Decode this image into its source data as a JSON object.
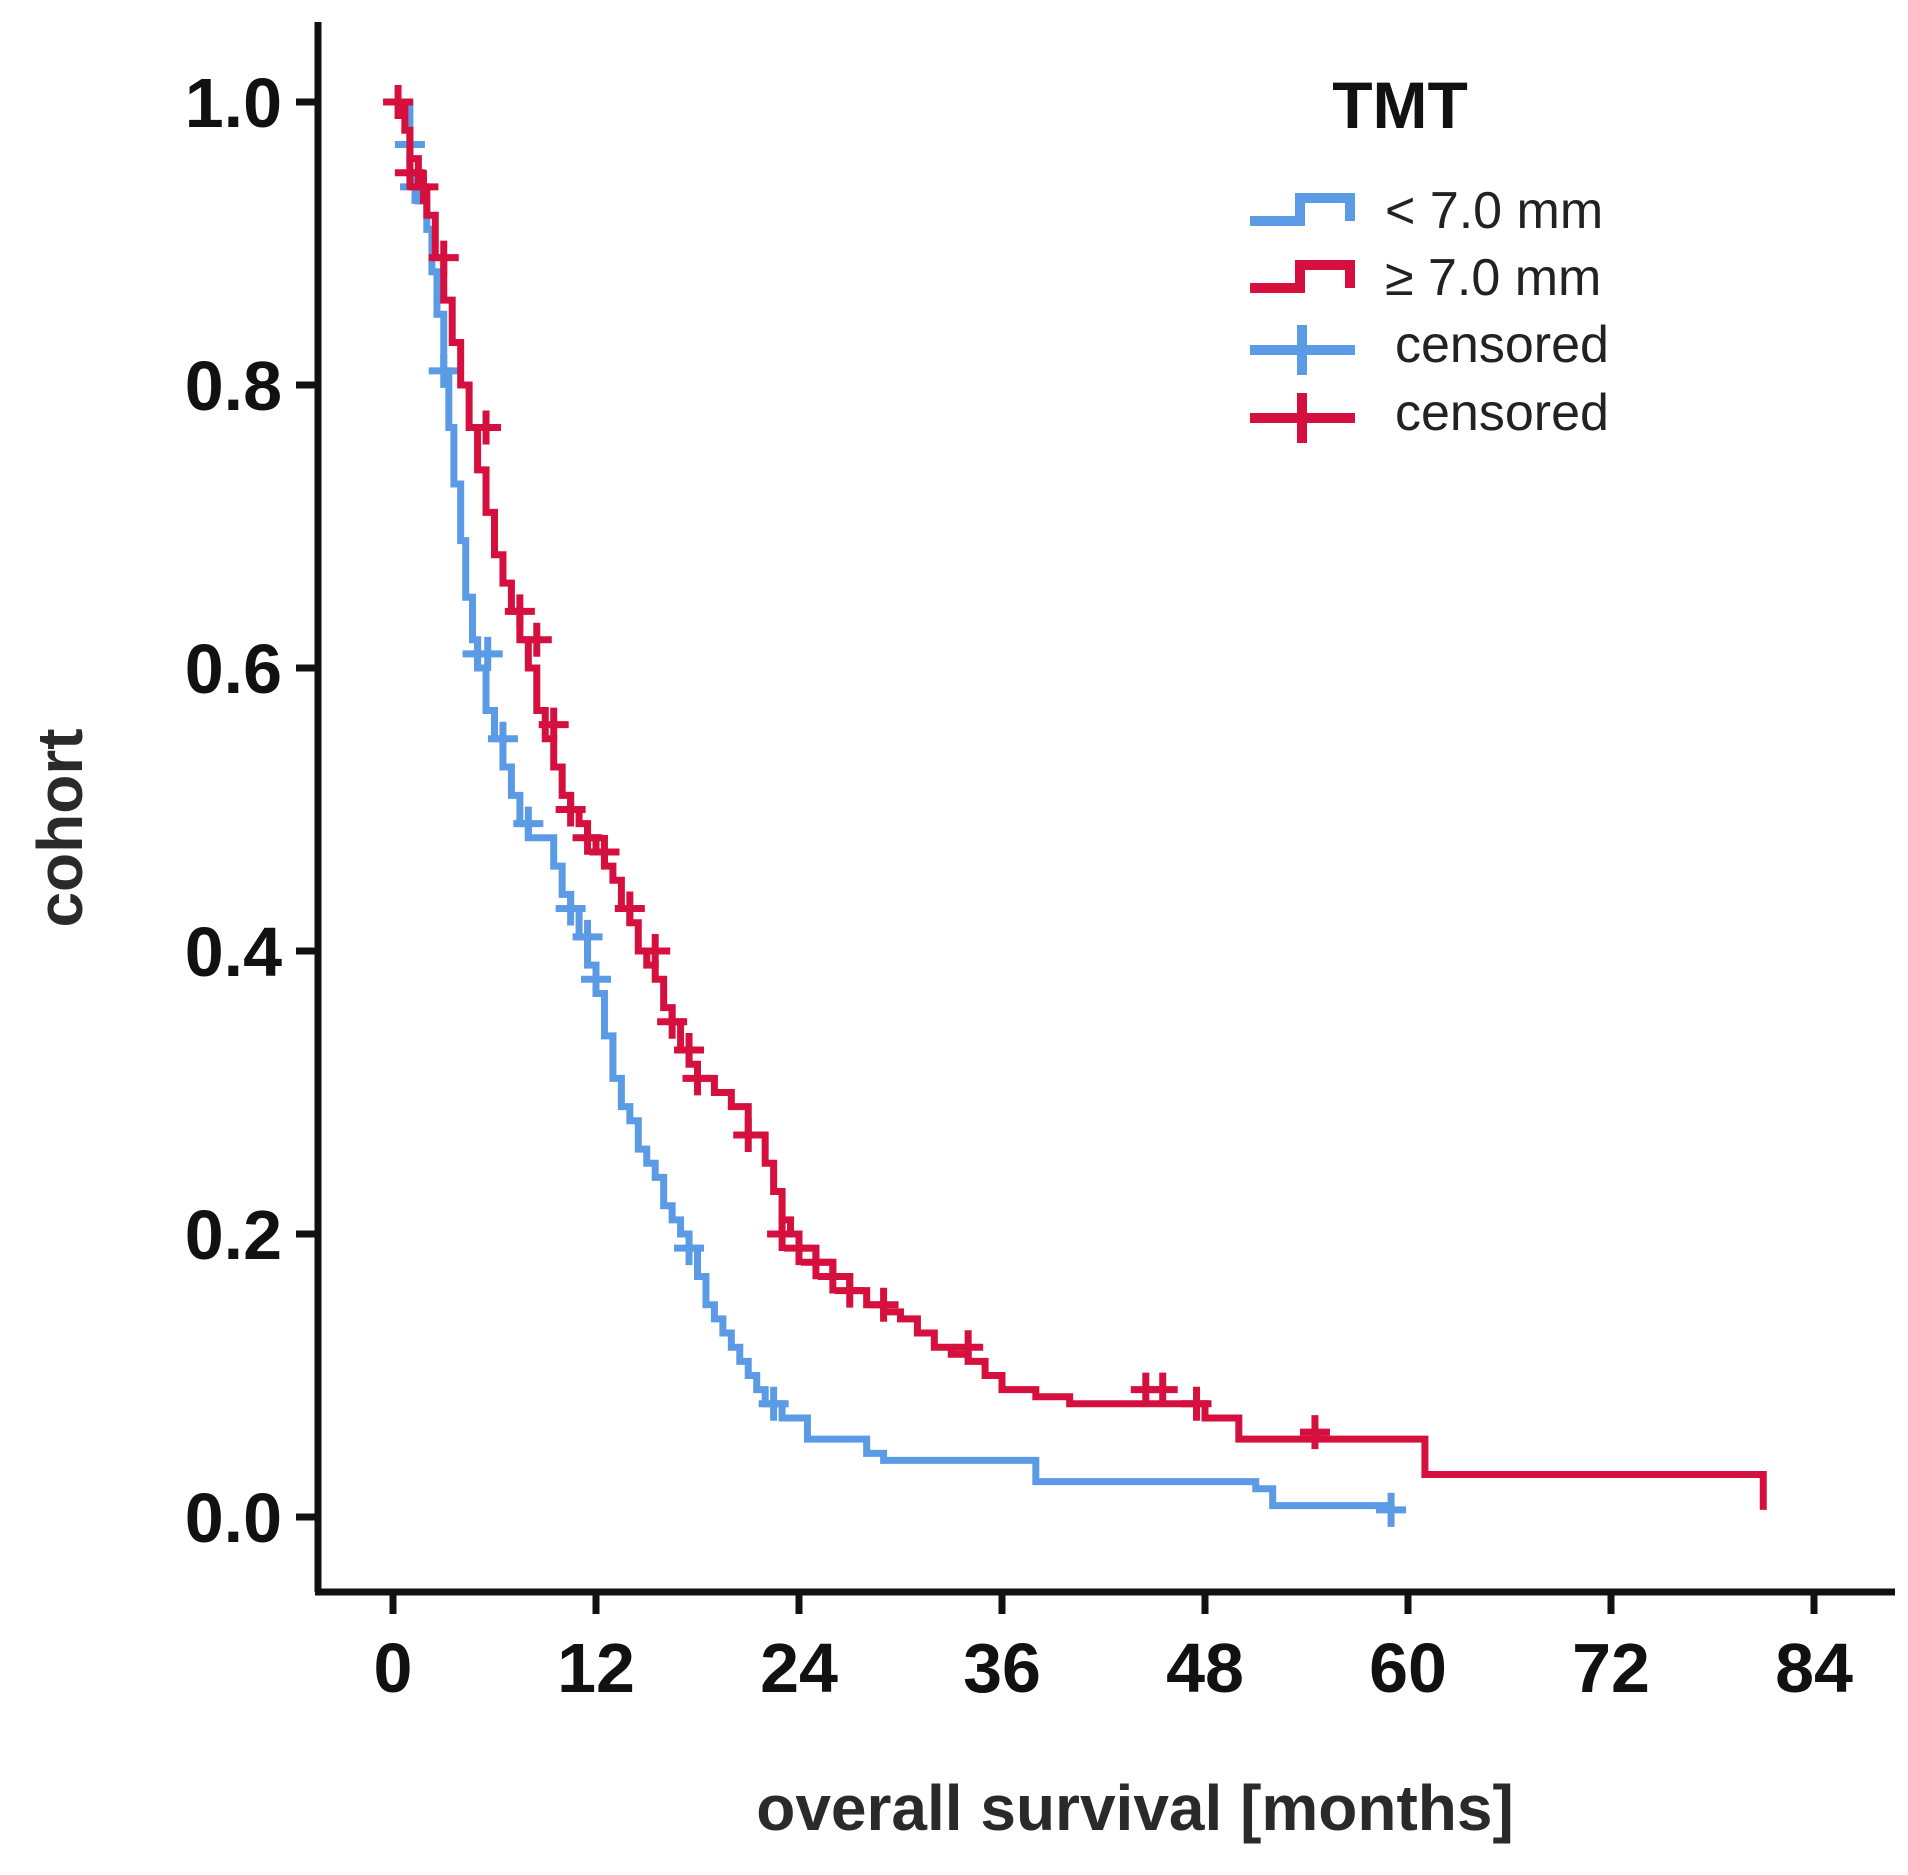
{
  "chart_data": {
    "type": "line",
    "subtype": "kaplan-meier",
    "xlabel": "overall survival [months]",
    "ylabel": "cohort",
    "xlim": [
      0,
      84
    ],
    "ylim": [
      0,
      1.0
    ],
    "xticks": [
      "0",
      "12",
      "24",
      "36",
      "48",
      "60",
      "72",
      "84"
    ],
    "xtick_values": [
      0,
      12,
      24,
      36,
      48,
      60,
      72,
      84
    ],
    "yticks": [
      "0.0",
      "0.2",
      "0.4",
      "0.6",
      "0.8",
      "1.0"
    ],
    "ytick_values": [
      0,
      0.2,
      0.4,
      0.6,
      0.8,
      1.0
    ],
    "legend": {
      "title": "TMT",
      "position": "top-right",
      "entries": [
        "< 7.0 mm",
        "≥ 7.0 mm",
        "censored",
        "censored"
      ]
    },
    "colors": {
      "blue": "#5b9be6",
      "red": "#d5103f",
      "axis": "#111111"
    },
    "series": [
      {
        "name": "< 7.0 mm",
        "color": "#5b9be6",
        "x": [
          0,
          1.0,
          1.5,
          2.0,
          2.3,
          2.6,
          3.0,
          3.3,
          3.6,
          4.0,
          4.3,
          4.7,
          5.0,
          5.5,
          6.0,
          6.5,
          7.0,
          7.5,
          8.0,
          9.5,
          10.0,
          10.5,
          11.0,
          11.5,
          12.0,
          12.5,
          13.0,
          13.5,
          14.0,
          14.5,
          15.0,
          15.5,
          16.0,
          16.5,
          17.0,
          17.5,
          18.0,
          18.5,
          19.0,
          19.5,
          20.0,
          20.5,
          21.0,
          21.5,
          22.0,
          23.0,
          24.5,
          28.0,
          29.0,
          38.0,
          51.0,
          52.0,
          59.0
        ],
        "y": [
          1.0,
          0.95,
          0.93,
          0.91,
          0.88,
          0.85,
          0.81,
          0.77,
          0.73,
          0.69,
          0.65,
          0.62,
          0.6,
          0.57,
          0.55,
          0.53,
          0.51,
          0.49,
          0.48,
          0.46,
          0.44,
          0.43,
          0.41,
          0.39,
          0.37,
          0.34,
          0.31,
          0.29,
          0.28,
          0.26,
          0.25,
          0.24,
          0.22,
          0.21,
          0.2,
          0.19,
          0.17,
          0.15,
          0.14,
          0.13,
          0.12,
          0.11,
          0.1,
          0.09,
          0.08,
          0.07,
          0.055,
          0.045,
          0.04,
          0.025,
          0.02,
          0.008,
          0.005
        ],
        "censored_x": [
          1.0,
          1.3,
          3.0,
          5.0,
          5.6,
          6.5,
          8.0,
          10.5,
          11.5,
          12.0,
          17.5,
          22.5,
          59.0
        ],
        "censored_y": [
          0.97,
          0.94,
          0.81,
          0.61,
          0.61,
          0.55,
          0.49,
          0.43,
          0.41,
          0.38,
          0.19,
          0.08,
          0.005
        ]
      },
      {
        "name": "≥ 7.0 mm",
        "color": "#d5103f",
        "x": [
          0,
          0.7,
          1.0,
          1.5,
          2.0,
          2.5,
          3.0,
          3.5,
          4.0,
          4.5,
          5.0,
          5.5,
          6.0,
          6.5,
          7.0,
          7.5,
          8.0,
          8.5,
          9.0,
          9.5,
          10.0,
          10.5,
          11.0,
          11.5,
          12.0,
          12.5,
          13.0,
          13.5,
          14.0,
          14.5,
          15.0,
          15.5,
          16.0,
          16.5,
          17.0,
          17.5,
          18.0,
          19.0,
          20.0,
          21.0,
          22.0,
          22.5,
          23.0,
          23.5,
          24.0,
          25.0,
          26.0,
          27.0,
          28.0,
          29.0,
          30.0,
          31.0,
          32.0,
          33.0,
          34.0,
          35.0,
          36.0,
          38.0,
          40.0,
          48.0,
          50.0,
          61.0,
          81.0
        ],
        "y": [
          1.0,
          0.98,
          0.96,
          0.94,
          0.92,
          0.89,
          0.86,
          0.83,
          0.8,
          0.77,
          0.74,
          0.71,
          0.68,
          0.66,
          0.64,
          0.62,
          0.6,
          0.57,
          0.55,
          0.53,
          0.51,
          0.5,
          0.49,
          0.48,
          0.47,
          0.46,
          0.45,
          0.43,
          0.42,
          0.4,
          0.39,
          0.38,
          0.36,
          0.35,
          0.33,
          0.32,
          0.31,
          0.3,
          0.29,
          0.27,
          0.25,
          0.23,
          0.21,
          0.2,
          0.19,
          0.18,
          0.17,
          0.16,
          0.15,
          0.145,
          0.14,
          0.13,
          0.12,
          0.115,
          0.11,
          0.1,
          0.09,
          0.085,
          0.08,
          0.07,
          0.055,
          0.03,
          0.005
        ],
        "censored_x": [
          0.3,
          1.0,
          1.8,
          3.0,
          5.5,
          7.5,
          8.5,
          9.5,
          10.5,
          11.5,
          12.5,
          14.0,
          15.5,
          16.5,
          17.5,
          18.0,
          21.0,
          23.0,
          24.0,
          25.0,
          26.0,
          27.0,
          29.0,
          34.0,
          44.5,
          45.5,
          47.5,
          54.5
        ],
        "censored_y": [
          1.0,
          0.95,
          0.94,
          0.89,
          0.77,
          0.64,
          0.62,
          0.56,
          0.5,
          0.48,
          0.47,
          0.43,
          0.4,
          0.35,
          0.33,
          0.31,
          0.27,
          0.2,
          0.19,
          0.18,
          0.17,
          0.16,
          0.15,
          0.12,
          0.09,
          0.09,
          0.08,
          0.06
        ]
      }
    ]
  }
}
